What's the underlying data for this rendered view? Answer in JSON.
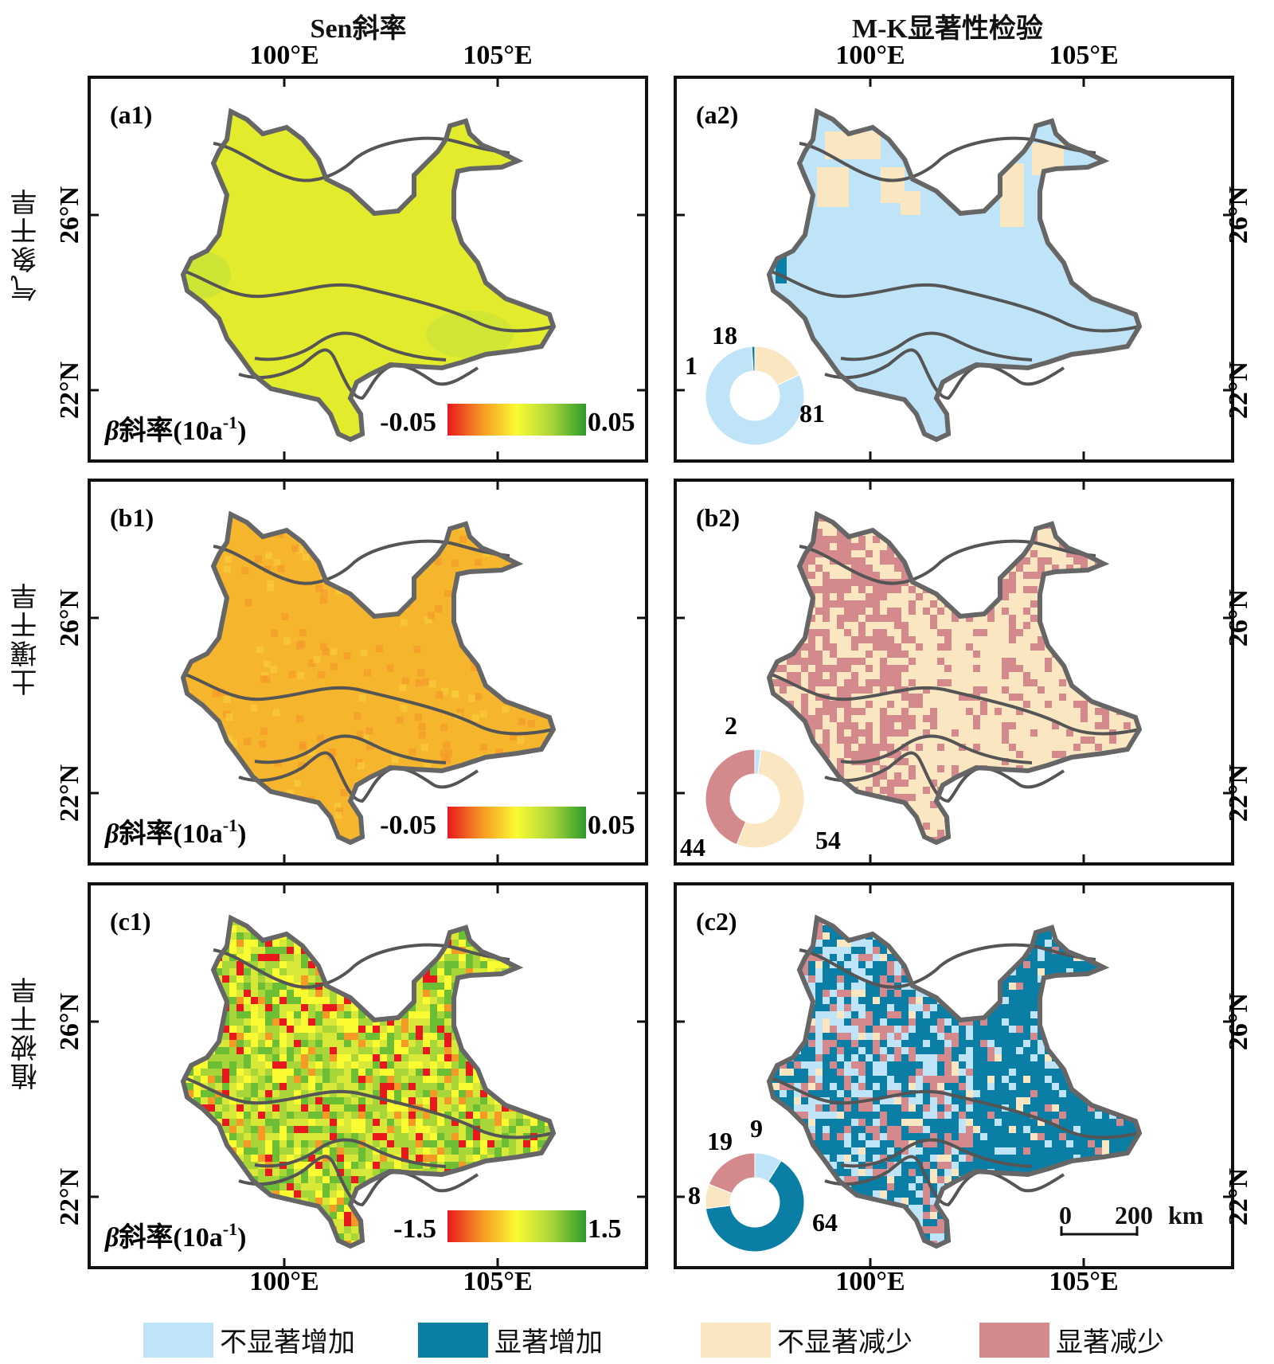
{
  "column_titles": {
    "left": "Sen斜率",
    "right": "M-K显著性检验"
  },
  "row_titles": [
    "气象干旱",
    "土壤干旱",
    "植被干旱"
  ],
  "axes": {
    "lon_ticks": [
      "100°E",
      "105°E"
    ],
    "lat_ticks": [
      "26°N",
      "22°N"
    ]
  },
  "panels": {
    "a1": {
      "label": "(a1)",
      "colorbar_title_prefix": "β",
      "colorbar_title_text": "斜率(10a",
      "colorbar_title_sup": "-1",
      "colorbar_title_close": ")",
      "min": "-0.05",
      "max": "0.05"
    },
    "b1": {
      "label": "(b1)",
      "colorbar_title_prefix": "β",
      "colorbar_title_text": "斜率(10a",
      "colorbar_title_sup": "-1",
      "colorbar_title_close": ")",
      "min": "-0.05",
      "max": "0.05"
    },
    "c1": {
      "label": "(c1)",
      "colorbar_title_prefix": "β",
      "colorbar_title_text": "斜率(10a",
      "colorbar_title_sup": "-1",
      "colorbar_title_close": ")",
      "min": "-1.5",
      "max": "1.5"
    },
    "a2": {
      "label": "(a2)",
      "donut": {
        "nsi": "81",
        "si": "1",
        "nsd": "18",
        "sd": ""
      }
    },
    "b2": {
      "label": "(b2)",
      "donut": {
        "nsi": "2",
        "si": "",
        "nsd": "54",
        "sd": "44"
      }
    },
    "c2": {
      "label": "(c2)",
      "donut": {
        "nsi": "9",
        "si": "64",
        "nsd": "8",
        "sd": "19"
      }
    }
  },
  "donut_values": {
    "a2": {
      "nsi": 81,
      "si": 1,
      "nsd": 18,
      "sd": 0
    },
    "b2": {
      "nsi": 2,
      "si": 0,
      "nsd": 54,
      "sd": 44
    },
    "c2": {
      "nsi": 9,
      "si": 64,
      "nsd": 8,
      "sd": 19
    }
  },
  "scale_bar": {
    "zero": "0",
    "distance": "200",
    "unit": "km"
  },
  "legend": [
    {
      "label": "不显著增加",
      "color": "#bfe4f8"
    },
    {
      "label": "显著增加",
      "color": "#0a7ea4"
    },
    {
      "label": "不显著减少",
      "color": "#fbe6c2"
    },
    {
      "label": "显著减少",
      "color": "#d4898d"
    }
  ],
  "colors": {
    "a1_fill": "#e2ec2c",
    "b1_fill": "#f5b52c",
    "c1_fill": "#bcd93c",
    "a2_fill": "#bfe4f8",
    "b2_fill": "#fbe6c2",
    "c2_fill": "#0a7ea4",
    "outline": "#666666",
    "zone_line": "#555555"
  }
}
